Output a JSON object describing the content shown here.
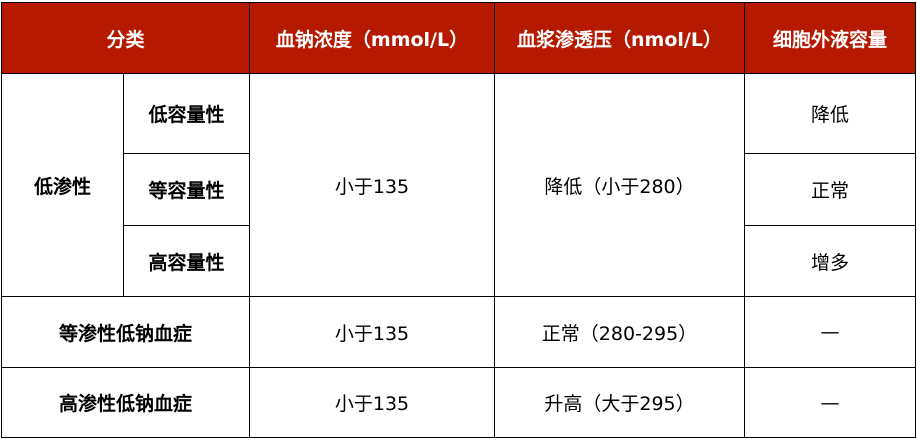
{
  "header": [
    "分类",
    "血钠浓度（mmol/L）",
    "血浆渗透压（nmol/L）",
    "细胞外液容量"
  ],
  "colors": {
    "header_bg": "#B51A00"
  },
  "hypo": {
    "label": "低渗性",
    "sodium": "小于135",
    "osmolality": "降低（小于280）",
    "subtypes": [
      {
        "label": "低容量性",
        "volume": "降低"
      },
      {
        "label": "等容量性",
        "volume": "正常"
      },
      {
        "label": "高容量性",
        "volume": "增多"
      }
    ]
  },
  "rows": [
    {
      "label": "等渗性低钠血症",
      "sodium": "小于135",
      "osmolality": "正常（280-295）",
      "volume": "—"
    },
    {
      "label": "高渗性低钠血症",
      "sodium": "小于135",
      "osmolality": "升高（大于295）",
      "volume": "—"
    }
  ]
}
